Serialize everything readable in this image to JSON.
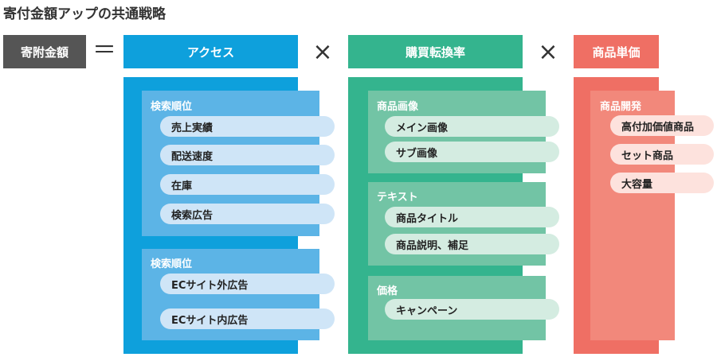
{
  "title": "寄付金額アップの共通戦略",
  "equation": {
    "lhs": "寄附金額",
    "equals": "＝",
    "times": "×"
  },
  "colors": {
    "gray": "#555555",
    "blue": "#0ea0dc",
    "blue_inner": "#5cb4e6",
    "blue_pill": "#cfe5f7",
    "green": "#34b48e",
    "green_inner": "#72c4a5",
    "green_pill": "#d4ece1",
    "red": "#ef6f64",
    "red_inner": "#f2887b",
    "red_pill": "#fde2dd"
  },
  "columns": [
    {
      "header": "アクセス",
      "groups": [
        {
          "label": "検索順位",
          "items": [
            "売上実績",
            "配送速度",
            "在庫",
            "検索広告"
          ]
        },
        {
          "label": "検索順位",
          "items": [
            "ECサイト外広告",
            "ECサイト内広告"
          ]
        }
      ]
    },
    {
      "header": "購買転換率",
      "groups": [
        {
          "label": "商品画像",
          "items": [
            "メイン画像",
            "サブ画像"
          ]
        },
        {
          "label": "テキスト",
          "items": [
            "商品タイトル",
            "商品説明、補足"
          ]
        },
        {
          "label": "価格",
          "items": [
            "キャンペーン"
          ]
        }
      ]
    },
    {
      "header": "商品単価",
      "groups": [
        {
          "label": "商品開発",
          "items": [
            "高付加価値商品",
            "セット商品",
            "大容量"
          ]
        }
      ]
    }
  ]
}
